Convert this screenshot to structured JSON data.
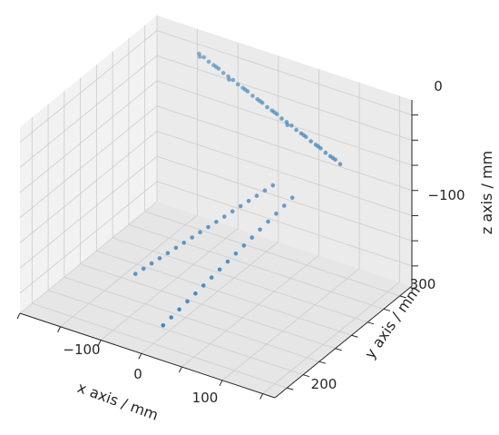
{
  "chart_data": {
    "type": "scatter",
    "projection": "3d",
    "title": "",
    "xlabel": "x axis / mm",
    "ylabel": "y axis / mm",
    "zlabel": "z axis / mm",
    "xticks": [
      "−100",
      "0",
      "100"
    ],
    "yticks": [
      "200",
      "300"
    ],
    "zticks": [
      "0",
      "−100"
    ],
    "grid": true,
    "legend": "none",
    "colors": {
      "points": "#3b7fb8",
      "pane_back": "#ebebeb",
      "pane_side": "#f2f2f2",
      "pane_floor": "#e6e6e6",
      "grid": "#cccccc",
      "axis": "#262626"
    },
    "series": [
      {
        "points": [
          [
            -88,
            325,
            0
          ],
          [
            -80,
            323,
            0
          ],
          [
            -72,
            321,
            -1
          ],
          [
            -64,
            319,
            -1
          ],
          [
            -56,
            317,
            -1
          ],
          [
            -48,
            315,
            -2
          ],
          [
            -40,
            313,
            -2
          ],
          [
            -32,
            311,
            -2
          ],
          [
            -24,
            309,
            -3
          ],
          [
            -16,
            307,
            -3
          ],
          [
            -8,
            305,
            -3
          ],
          [
            0,
            303,
            -4
          ],
          [
            8,
            301,
            -4
          ],
          [
            16,
            299,
            -4
          ],
          [
            24,
            297,
            -5
          ],
          [
            32,
            295,
            -5
          ],
          [
            40,
            293,
            -5
          ],
          [
            48,
            291,
            -6
          ],
          [
            56,
            289,
            -6
          ],
          [
            64,
            287,
            -6
          ],
          [
            72,
            285,
            -7
          ],
          [
            80,
            283,
            -7
          ],
          [
            88,
            281,
            -7
          ],
          [
            96,
            279,
            -8
          ],
          [
            104,
            277,
            -8
          ],
          [
            112,
            275,
            -8
          ],
          [
            120,
            273,
            -9
          ],
          [
            128,
            271,
            -9
          ],
          [
            136,
            269,
            -9
          ],
          [
            144,
            267,
            -10
          ],
          [
            -84,
            322,
            0
          ],
          [
            -60,
            318,
            -1
          ],
          [
            -36,
            310,
            -2
          ],
          [
            -12,
            306,
            -3
          ],
          [
            12,
            300,
            -4
          ],
          [
            36,
            294,
            -5
          ],
          [
            60,
            286,
            -6
          ],
          [
            84,
            282,
            -7
          ],
          [
            108,
            276,
            -8
          ],
          [
            132,
            270,
            -9
          ],
          [
            -78,
            236,
            -158
          ],
          [
            -70,
            238,
            -152
          ],
          [
            -62,
            240,
            -146
          ],
          [
            -54,
            242,
            -140
          ],
          [
            -46,
            244,
            -134
          ],
          [
            -38,
            246,
            -128
          ],
          [
            -30,
            248,
            -122
          ],
          [
            -22,
            250,
            -116
          ],
          [
            -14,
            252,
            -110
          ],
          [
            -6,
            254,
            -104
          ],
          [
            2,
            256,
            -98
          ],
          [
            10,
            258,
            -92
          ],
          [
            18,
            260,
            -86
          ],
          [
            26,
            262,
            -80
          ],
          [
            34,
            264,
            -74
          ],
          [
            42,
            266,
            -68
          ],
          [
            50,
            268,
            -62
          ],
          [
            58,
            270,
            -56
          ],
          [
            4,
            188,
            -156
          ],
          [
            9,
            193,
            -150
          ],
          [
            14,
            198,
            -144
          ],
          [
            19,
            203,
            -138
          ],
          [
            24,
            208,
            -132
          ],
          [
            29,
            213,
            -126
          ],
          [
            34,
            218,
            -120
          ],
          [
            39,
            223,
            -114
          ],
          [
            44,
            228,
            -108
          ],
          [
            49,
            233,
            -102
          ],
          [
            54,
            238,
            -96
          ],
          [
            59,
            243,
            -90
          ],
          [
            64,
            248,
            -84
          ],
          [
            69,
            253,
            -78
          ],
          [
            74,
            258,
            -72
          ],
          [
            79,
            263,
            -66
          ],
          [
            84,
            268,
            -60
          ]
        ]
      }
    ]
  }
}
